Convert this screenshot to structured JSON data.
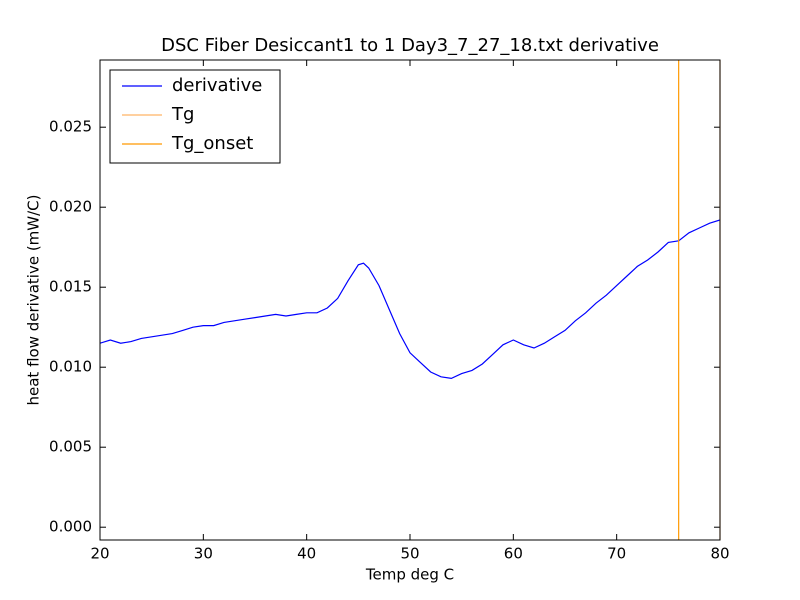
{
  "chart_data": {
    "type": "line",
    "title": "DSC Fiber Desiccant1 to 1 Day3_7_27_18.txt derivative",
    "x_label": "Temp deg C",
    "y_label": "heat flow derivative (mW/C)",
    "x": [
      20,
      21,
      22,
      23,
      24,
      25,
      26,
      27,
      28,
      29,
      30,
      31,
      32,
      33,
      34,
      35,
      36,
      37,
      38,
      39,
      40,
      41,
      42,
      43,
      44,
      45,
      45.5,
      46,
      47,
      48,
      49,
      50,
      51,
      52,
      53,
      54,
      55,
      56,
      57,
      58,
      59,
      60,
      61,
      62,
      63,
      64,
      65,
      66,
      67,
      68,
      69,
      70,
      71,
      72,
      73,
      74,
      75,
      76,
      77,
      78,
      79,
      80
    ],
    "series": [
      {
        "name": "derivative",
        "color": "#0000ff",
        "values": [
          0.0115,
          0.0117,
          0.0115,
          0.0116,
          0.0118,
          0.0119,
          0.012,
          0.0121,
          0.0123,
          0.0125,
          0.0126,
          0.0126,
          0.0128,
          0.0129,
          0.013,
          0.0131,
          0.0132,
          0.0133,
          0.0132,
          0.0133,
          0.0134,
          0.0134,
          0.0137,
          0.0143,
          0.0154,
          0.0164,
          0.0165,
          0.0162,
          0.0151,
          0.0136,
          0.0121,
          0.0109,
          0.0103,
          0.0097,
          0.0094,
          0.0093,
          0.0096,
          0.0098,
          0.0102,
          0.0108,
          0.0114,
          0.0117,
          0.0114,
          0.0112,
          0.0115,
          0.0119,
          0.0123,
          0.0129,
          0.0134,
          0.014,
          0.0145,
          0.0151,
          0.0157,
          0.0163,
          0.0167,
          0.0172,
          0.0178,
          0.0179,
          0.0184,
          0.0187,
          0.019,
          0.0192
        ]
      }
    ],
    "vlines": [
      {
        "name": "Tg",
        "color": "#ffb366",
        "x": 80
      },
      {
        "name": "Tg_onset",
        "color": "#ff9900",
        "x": 76
      }
    ],
    "xlim": [
      20,
      80
    ],
    "ylim": [
      -0.0008,
      0.0292
    ],
    "xticks": [
      20,
      30,
      40,
      50,
      60,
      70,
      80
    ],
    "yticks": [
      {
        "value": 0,
        "label": "0.000"
      },
      {
        "value": 0.005,
        "label": "0.005"
      },
      {
        "value": 0.01,
        "label": "0.010"
      },
      {
        "value": 0.015,
        "label": "0.015"
      },
      {
        "value": 0.02,
        "label": "0.020"
      },
      {
        "value": 0.025,
        "label": "0.025"
      }
    ],
    "legend": "upper left",
    "grid": false
  }
}
